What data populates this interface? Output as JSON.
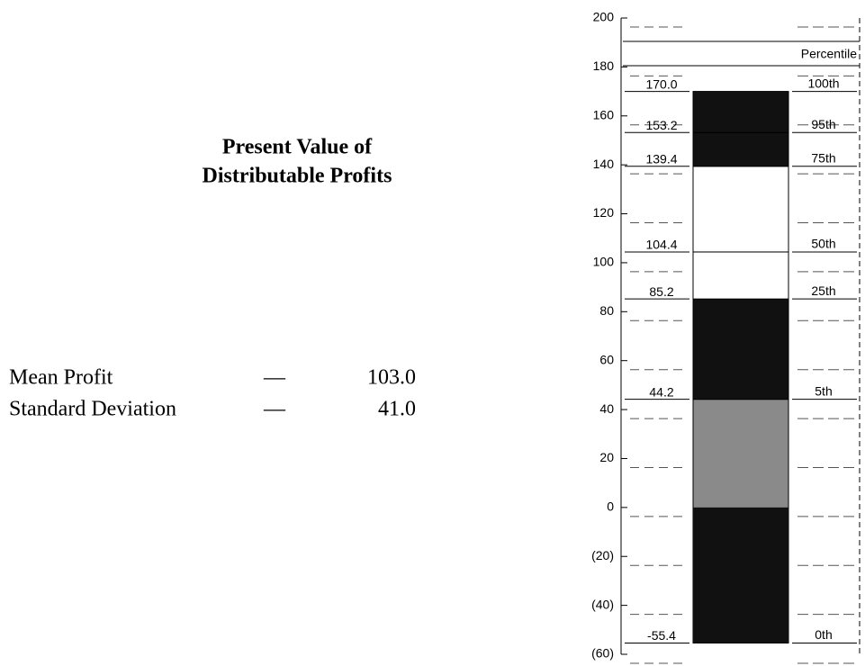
{
  "chart_data": {
    "type": "percentile-bar",
    "title_lines": [
      "Present Value of",
      "Distributable Profits"
    ],
    "percentile_header": "Percentile",
    "percentiles": [
      "0th",
      "5th",
      "25th",
      "50th",
      "75th",
      "95th",
      "100th"
    ],
    "values": [
      -55.4,
      44.2,
      85.2,
      104.4,
      139.4,
      153.2,
      170
    ],
    "value_labels": [
      "-55.4",
      "44.2",
      "85.2",
      "104.4",
      "139.4",
      "153.2",
      "170.0"
    ],
    "band_colors": [
      "#8a8a8a",
      "#111111",
      "#ffffff",
      "#ffffff",
      "#111111",
      "#111111"
    ],
    "negative_color": "#111111",
    "ylim": [
      -60,
      200
    ],
    "yticks": [
      {
        "value": -60,
        "label": "(60)"
      },
      {
        "value": -40,
        "label": "(40)"
      },
      {
        "value": -20,
        "label": "(20)"
      },
      0,
      20,
      40,
      60,
      80,
      100,
      120,
      140,
      160,
      180,
      200
    ],
    "stats": [
      {
        "label": "Mean Profit",
        "dash": "—",
        "value": "103.0"
      },
      {
        "label": "Standard Deviation",
        "dash": "—",
        "value": "41.0"
      }
    ]
  }
}
